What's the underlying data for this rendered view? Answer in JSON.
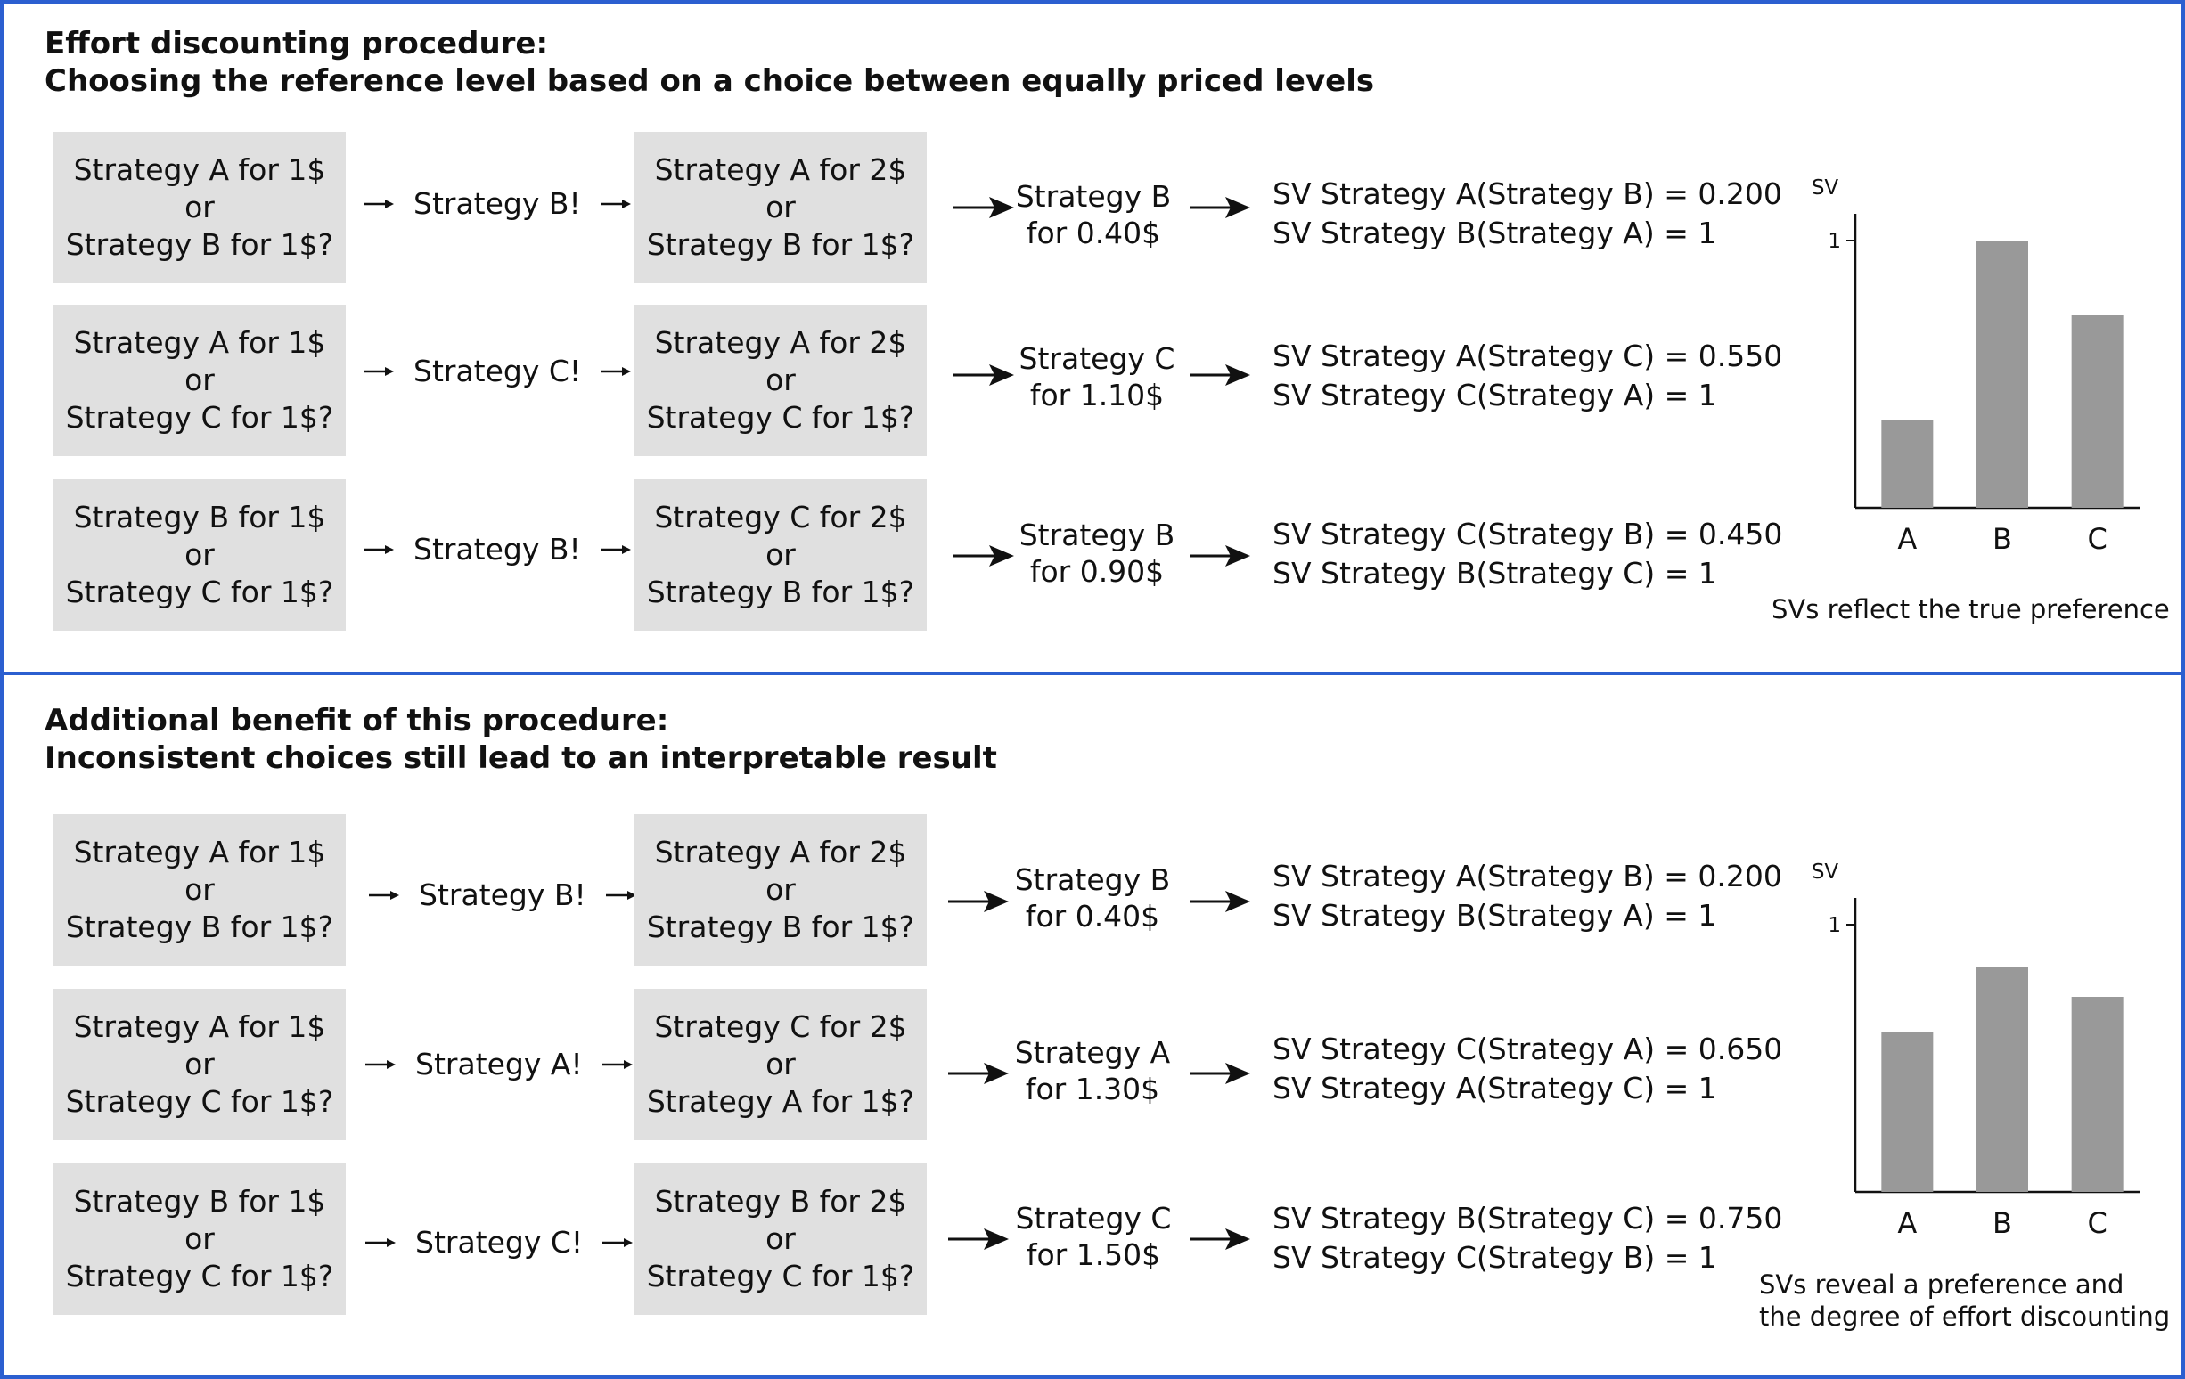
{
  "panels": [
    {
      "heading_line1": "Effort discounting procedure:",
      "heading_line2": "Choosing the reference level based on a choice between equally priced levels",
      "rows": [
        {
          "box1": [
            "Strategy A for 1$",
            "or",
            "Strategy B for 1$?"
          ],
          "choice": "Strategy B!",
          "box2": [
            "Strategy A for 2$",
            "or",
            "Strategy B for 1$?"
          ],
          "price": [
            "Strategy B",
            "for 0.40$"
          ],
          "sv": [
            "SV Strategy A(Strategy B) = 0.200",
            "SV Strategy B(Strategy A) = 1"
          ]
        },
        {
          "box1": [
            "Strategy A for 1$",
            "or",
            "Strategy C for 1$?"
          ],
          "choice": "Strategy C!",
          "box2": [
            "Strategy A for 2$",
            "or",
            "Strategy C for 1$?"
          ],
          "price": [
            "Strategy C",
            "for 1.10$"
          ],
          "sv": [
            "SV Strategy A(Strategy C) = 0.550",
            "SV Strategy C(Strategy A) = 1"
          ]
        },
        {
          "box1": [
            "Strategy B for 1$",
            "or",
            "Strategy C for 1$?"
          ],
          "choice": "Strategy B!",
          "box2": [
            "Strategy C for 2$",
            "or",
            "Strategy B for 1$?"
          ],
          "price": [
            "Strategy B",
            "for 0.90$"
          ],
          "sv": [
            "SV Strategy C(Strategy B) = 0.450",
            "SV Strategy B(Strategy C) = 1"
          ]
        }
      ],
      "caption": [
        "SVs reflect the true preference"
      ]
    },
    {
      "heading_line1": "Additional benefit of this procedure:",
      "heading_line2": "Inconsistent choices still lead to an interpretable result",
      "rows": [
        {
          "box1": [
            "Strategy A for 1$",
            "or",
            "Strategy B for 1$?"
          ],
          "choice": "Strategy B!",
          "box2": [
            "Strategy A for 2$",
            "or",
            "Strategy B for 1$?"
          ],
          "price": [
            "Strategy B",
            "for 0.40$"
          ],
          "sv": [
            "SV Strategy A(Strategy B) = 0.200",
            "SV Strategy B(Strategy A) = 1"
          ]
        },
        {
          "box1": [
            "Strategy A for 1$",
            "or",
            "Strategy C for 1$?"
          ],
          "choice": "Strategy A!",
          "box2": [
            "Strategy C for 2$",
            "or",
            "Strategy A for 1$?"
          ],
          "price": [
            "Strategy A",
            "for 1.30$"
          ],
          "sv": [
            "SV Strategy C(Strategy A) = 0.650",
            "SV Strategy A(Strategy C) = 1"
          ]
        },
        {
          "box1": [
            "Strategy B for 1$",
            "or",
            "Strategy C for 1$?"
          ],
          "choice": "Strategy C!",
          "box2": [
            "Strategy B for 2$",
            "or",
            "Strategy C for 1$?"
          ],
          "price": [
            "Strategy C",
            "for 1.50$"
          ],
          "sv": [
            "SV Strategy B(Strategy C) = 0.750",
            "SV Strategy C(Strategy B) = 1"
          ]
        }
      ],
      "caption": [
        "SVs reveal a preference and",
        "the degree of effort discounting"
      ]
    }
  ],
  "chart_data": [
    {
      "type": "bar",
      "categories": [
        "A",
        "B",
        "C"
      ],
      "values": [
        0.33,
        1.0,
        0.72
      ],
      "ylabel": "SV",
      "yticks": [
        1
      ],
      "ylim": [
        0,
        1.1
      ],
      "bar_color": "#999999"
    },
    {
      "type": "bar",
      "categories": [
        "A",
        "B",
        "C"
      ],
      "values": [
        0.6,
        0.84,
        0.73
      ],
      "ylabel": "SV",
      "yticks": [
        1
      ],
      "ylim": [
        0,
        1.1
      ],
      "bar_color": "#999999"
    }
  ]
}
